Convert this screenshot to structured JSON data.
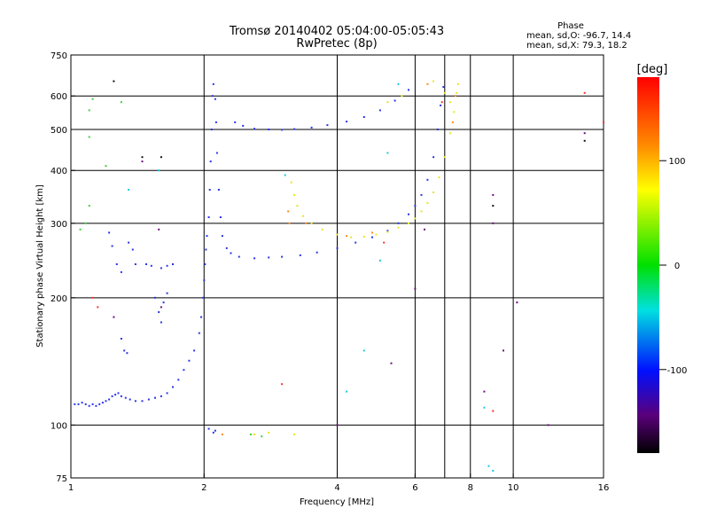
{
  "chart_data": {
    "type": "scatter",
    "title": "Tromsø 20140402 05:04:00-05:05:43",
    "subtitle": "RwPretec (8p)",
    "xlabel": "Frequency [MHz]",
    "ylabel": "Stationary phase Virtual Height [km]",
    "x_scale": "log",
    "y_scale": "log",
    "xlim": [
      1,
      16
    ],
    "ylim": [
      75,
      750
    ],
    "x_ticks": [
      1,
      2,
      4,
      6,
      8,
      10,
      16
    ],
    "y_ticks": [
      75,
      100,
      200,
      300,
      400,
      500,
      600,
      750
    ],
    "x_grid": [
      2,
      4,
      6,
      7,
      8,
      10
    ],
    "y_grid": [
      100,
      200,
      300,
      400,
      500,
      600
    ],
    "phase_box": {
      "title": "Phase",
      "line1": "mean, sd,O: -96.7, 14.4",
      "line2": "mean, sd,X:  79.3, 18.2"
    },
    "colorbar": {
      "label": "[deg]",
      "range": [
        -180,
        180
      ],
      "ticks": [
        100,
        0,
        -100
      ]
    },
    "series": [
      {
        "color": "#2a35e8",
        "points": [
          [
            1.02,
            112
          ],
          [
            1.04,
            112
          ],
          [
            1.06,
            113
          ],
          [
            1.08,
            112
          ],
          [
            1.1,
            111
          ],
          [
            1.12,
            112
          ],
          [
            1.14,
            111
          ],
          [
            1.16,
            112
          ],
          [
            1.18,
            113
          ],
          [
            1.2,
            114
          ],
          [
            1.22,
            115
          ],
          [
            1.24,
            117
          ],
          [
            1.26,
            118
          ],
          [
            1.28,
            119
          ],
          [
            1.3,
            117
          ],
          [
            1.33,
            116
          ],
          [
            1.36,
            115
          ],
          [
            1.4,
            114
          ],
          [
            1.45,
            114
          ],
          [
            1.5,
            115
          ],
          [
            1.55,
            116
          ],
          [
            1.6,
            117
          ],
          [
            1.65,
            119
          ],
          [
            1.7,
            123
          ],
          [
            1.75,
            128
          ],
          [
            1.8,
            135
          ],
          [
            1.85,
            142
          ],
          [
            1.9,
            150
          ],
          [
            1.95,
            165
          ],
          [
            1.97,
            180
          ],
          [
            1.99,
            200
          ],
          [
            2.0,
            220
          ],
          [
            2.01,
            240
          ],
          [
            2.02,
            260
          ],
          [
            2.03,
            280
          ],
          [
            2.05,
            310
          ],
          [
            2.06,
            360
          ],
          [
            2.07,
            420
          ],
          [
            2.08,
            500
          ],
          [
            2.09,
            600
          ],
          [
            2.1,
            640
          ],
          [
            2.12,
            590
          ],
          [
            2.13,
            520
          ],
          [
            2.14,
            440
          ],
          [
            2.16,
            360
          ],
          [
            2.18,
            310
          ],
          [
            2.2,
            280
          ],
          [
            2.25,
            262
          ],
          [
            2.3,
            255
          ],
          [
            2.4,
            250
          ],
          [
            2.6,
            248
          ],
          [
            2.8,
            249
          ],
          [
            3.0,
            250
          ],
          [
            3.3,
            252
          ],
          [
            3.6,
            256
          ],
          [
            4.0,
            262
          ],
          [
            4.4,
            270
          ],
          [
            4.8,
            278
          ],
          [
            5.2,
            288
          ],
          [
            5.5,
            300
          ],
          [
            5.8,
            315
          ],
          [
            6.0,
            330
          ],
          [
            6.2,
            350
          ],
          [
            6.4,
            380
          ],
          [
            6.6,
            430
          ],
          [
            6.75,
            500
          ],
          [
            6.85,
            570
          ],
          [
            6.95,
            630
          ],
          [
            2.35,
            520
          ],
          [
            2.45,
            510
          ],
          [
            2.6,
            502
          ],
          [
            2.8,
            500
          ],
          [
            3.0,
            499
          ],
          [
            3.2,
            501
          ],
          [
            3.5,
            505
          ],
          [
            3.8,
            512
          ],
          [
            4.2,
            522
          ],
          [
            4.6,
            535
          ],
          [
            5.0,
            555
          ],
          [
            5.4,
            585
          ],
          [
            5.8,
            620
          ],
          [
            1.22,
            285
          ],
          [
            1.24,
            265
          ],
          [
            1.27,
            240
          ],
          [
            1.3,
            230
          ],
          [
            1.35,
            270
          ],
          [
            1.38,
            260
          ],
          [
            1.4,
            240
          ],
          [
            1.3,
            160
          ],
          [
            1.32,
            150
          ],
          [
            1.34,
            148
          ],
          [
            1.55,
            200
          ],
          [
            1.58,
            185
          ],
          [
            1.6,
            175
          ],
          [
            1.62,
            195
          ],
          [
            1.65,
            205
          ],
          [
            1.48,
            240
          ],
          [
            1.52,
            238
          ],
          [
            1.6,
            235
          ],
          [
            1.65,
            238
          ],
          [
            1.7,
            240
          ],
          [
            2.05,
            98
          ],
          [
            2.1,
            96
          ],
          [
            2.12,
            97
          ]
        ]
      },
      {
        "color": "#e6e61e",
        "points": [
          [
            3.15,
            375
          ],
          [
            3.2,
            350
          ],
          [
            3.25,
            330
          ],
          [
            3.35,
            312
          ],
          [
            3.5,
            300
          ],
          [
            3.7,
            290
          ],
          [
            4.0,
            282
          ],
          [
            4.3,
            278
          ],
          [
            4.6,
            279
          ],
          [
            4.9,
            282
          ],
          [
            5.2,
            286
          ],
          [
            5.5,
            293
          ],
          [
            5.8,
            300
          ],
          [
            6.0,
            308
          ],
          [
            6.2,
            320
          ],
          [
            6.4,
            335
          ],
          [
            6.6,
            355
          ],
          [
            6.8,
            385
          ],
          [
            7.0,
            430
          ],
          [
            7.2,
            490
          ],
          [
            7.35,
            550
          ],
          [
            7.45,
            610
          ],
          [
            7.5,
            640
          ],
          [
            5.2,
            580
          ],
          [
            5.6,
            600
          ],
          [
            6.6,
            650
          ],
          [
            7.0,
            610
          ],
          [
            7.2,
            580
          ],
          [
            2.6,
            95
          ],
          [
            2.8,
            96
          ],
          [
            3.2,
            95
          ]
        ]
      },
      {
        "color": "#ff8c1a",
        "points": [
          [
            3.1,
            320
          ],
          [
            3.12,
            300
          ],
          [
            3.4,
            300
          ],
          [
            4.2,
            280
          ],
          [
            4.8,
            285
          ],
          [
            6.4,
            640
          ],
          [
            7.3,
            520
          ],
          [
            7.4,
            600
          ],
          [
            2.2,
            95
          ]
        ]
      },
      {
        "color": "#3fcf3f",
        "points": [
          [
            1.1,
            555
          ],
          [
            1.12,
            590
          ],
          [
            1.3,
            580
          ],
          [
            1.1,
            330
          ],
          [
            1.08,
            300
          ],
          [
            1.05,
            290
          ],
          [
            1.1,
            480
          ],
          [
            2.55,
            95
          ],
          [
            2.7,
            94
          ],
          [
            1.2,
            410
          ]
        ]
      },
      {
        "color": "#18c8d8",
        "points": [
          [
            1.58,
            400
          ],
          [
            3.05,
            390
          ],
          [
            5.0,
            245
          ],
          [
            8.8,
            80
          ],
          [
            9.0,
            78
          ],
          [
            1.35,
            360
          ],
          [
            5.5,
            640
          ],
          [
            4.2,
            120
          ],
          [
            4.6,
            150
          ],
          [
            8.6,
            110
          ],
          [
            5.2,
            440
          ]
        ]
      },
      {
        "color": "#ff3030",
        "points": [
          [
            1.12,
            200
          ],
          [
            1.15,
            190
          ],
          [
            6.9,
            580
          ],
          [
            9.0,
            108
          ],
          [
            14.5,
            610
          ],
          [
            16.0,
            520
          ],
          [
            5.1,
            270
          ],
          [
            3.0,
            125
          ]
        ]
      },
      {
        "color": "#6a0f7a",
        "points": [
          [
            1.45,
            420
          ],
          [
            1.58,
            290
          ],
          [
            1.6,
            190
          ],
          [
            1.25,
            180
          ],
          [
            9.0,
            350
          ],
          [
            9.0,
            300
          ],
          [
            9.5,
            150
          ],
          [
            6.3,
            290
          ],
          [
            6.0,
            210
          ],
          [
            14.5,
            490
          ],
          [
            12.0,
            100
          ],
          [
            4.0,
            100
          ],
          [
            8.6,
            120
          ],
          [
            5.3,
            140
          ],
          [
            10.2,
            195
          ]
        ]
      },
      {
        "color": "#111111",
        "points": [
          [
            1.25,
            650
          ],
          [
            1.6,
            430
          ],
          [
            9.0,
            330
          ],
          [
            14.5,
            470
          ],
          [
            1.45,
            430
          ]
        ]
      }
    ]
  }
}
